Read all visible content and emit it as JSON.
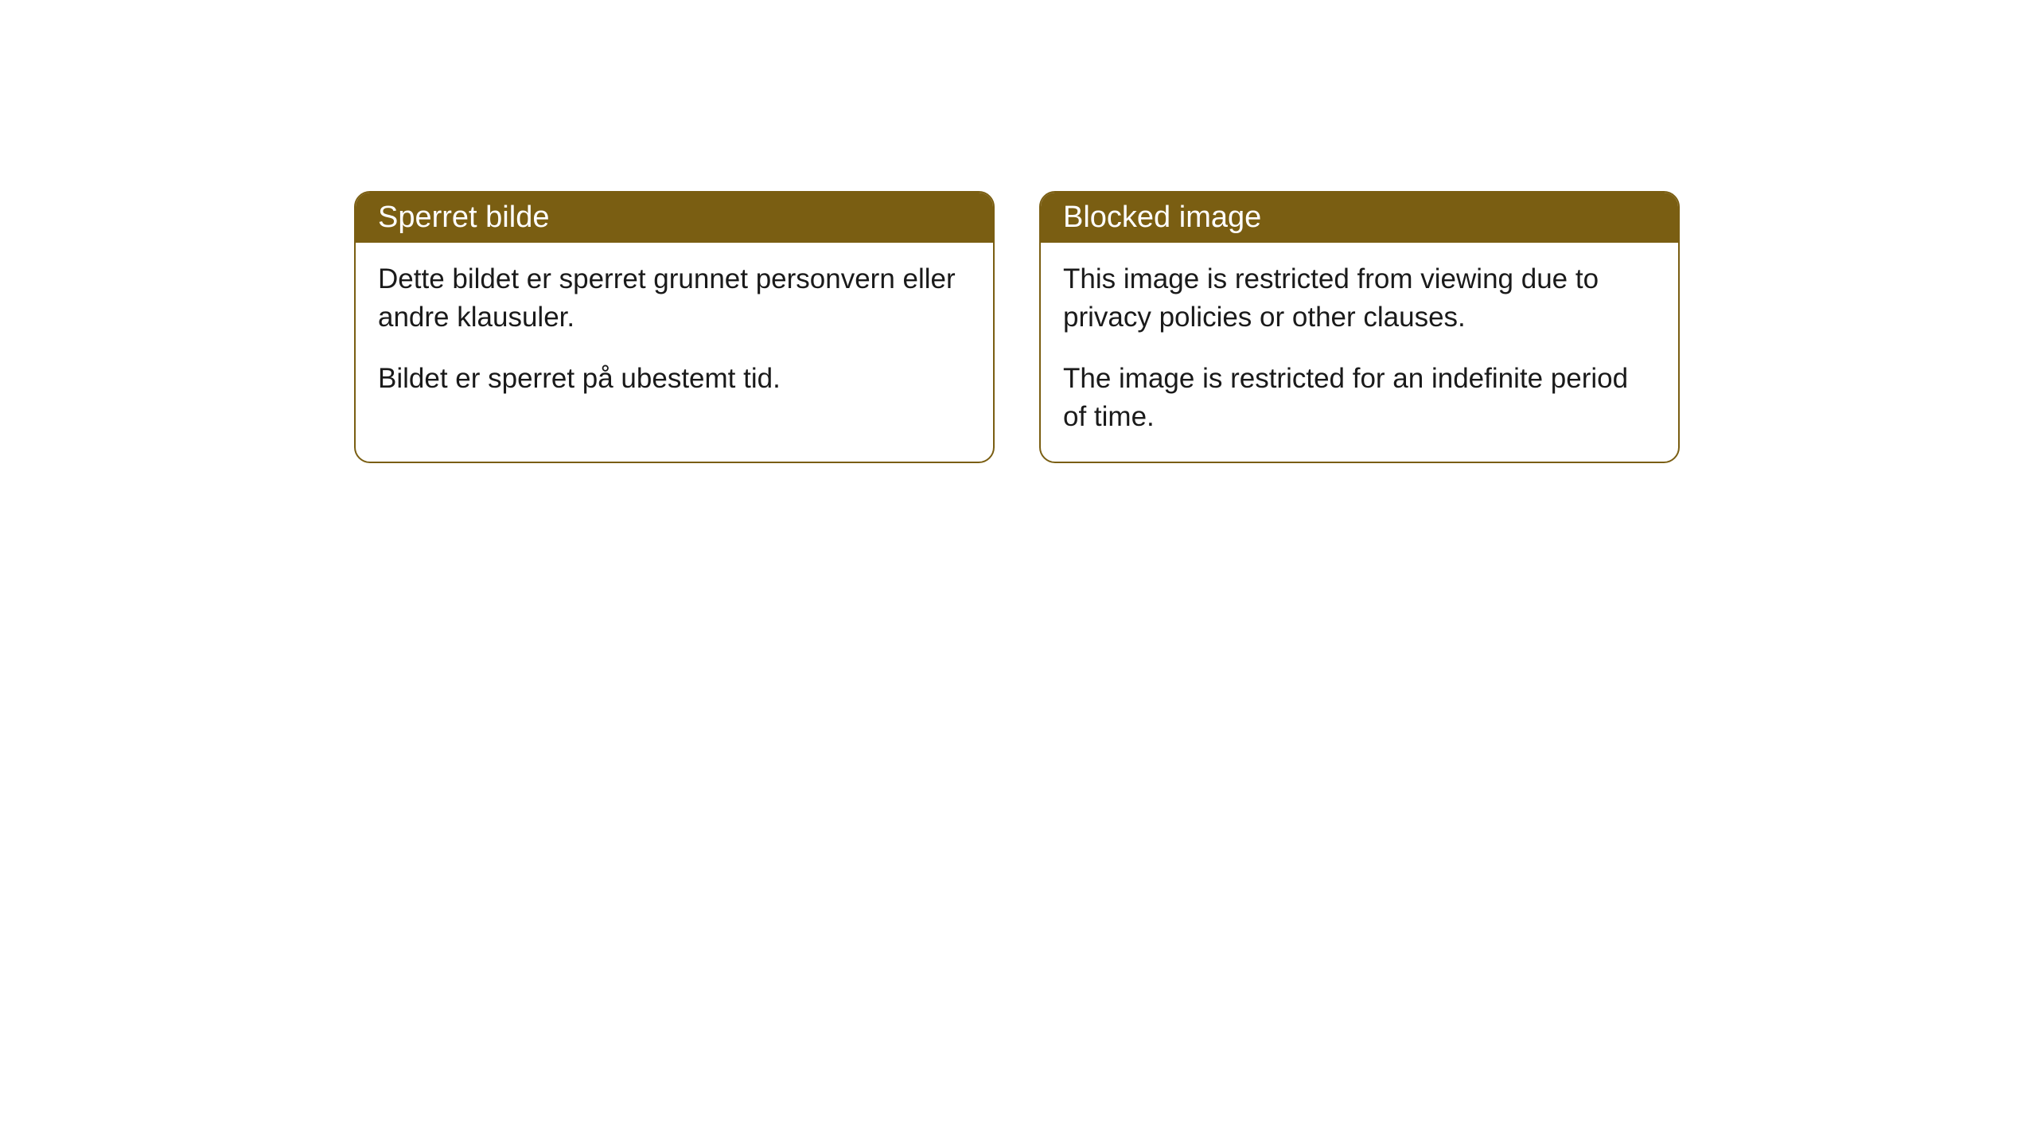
{
  "cards": [
    {
      "title": "Sperret bilde",
      "paragraph1": "Dette bildet er sperret grunnet personvern eller andre klausuler.",
      "paragraph2": "Bildet er sperret på ubestemt tid."
    },
    {
      "title": "Blocked image",
      "paragraph1": "This image is restricted from viewing due to privacy policies or other clauses.",
      "paragraph2": "The image is restricted for an indefinite period of time."
    }
  ],
  "colors": {
    "header_bg": "#7a5e12",
    "header_text": "#ffffff",
    "body_text": "#1a1a1a",
    "card_bg": "#ffffff",
    "border": "#7a5e12"
  }
}
